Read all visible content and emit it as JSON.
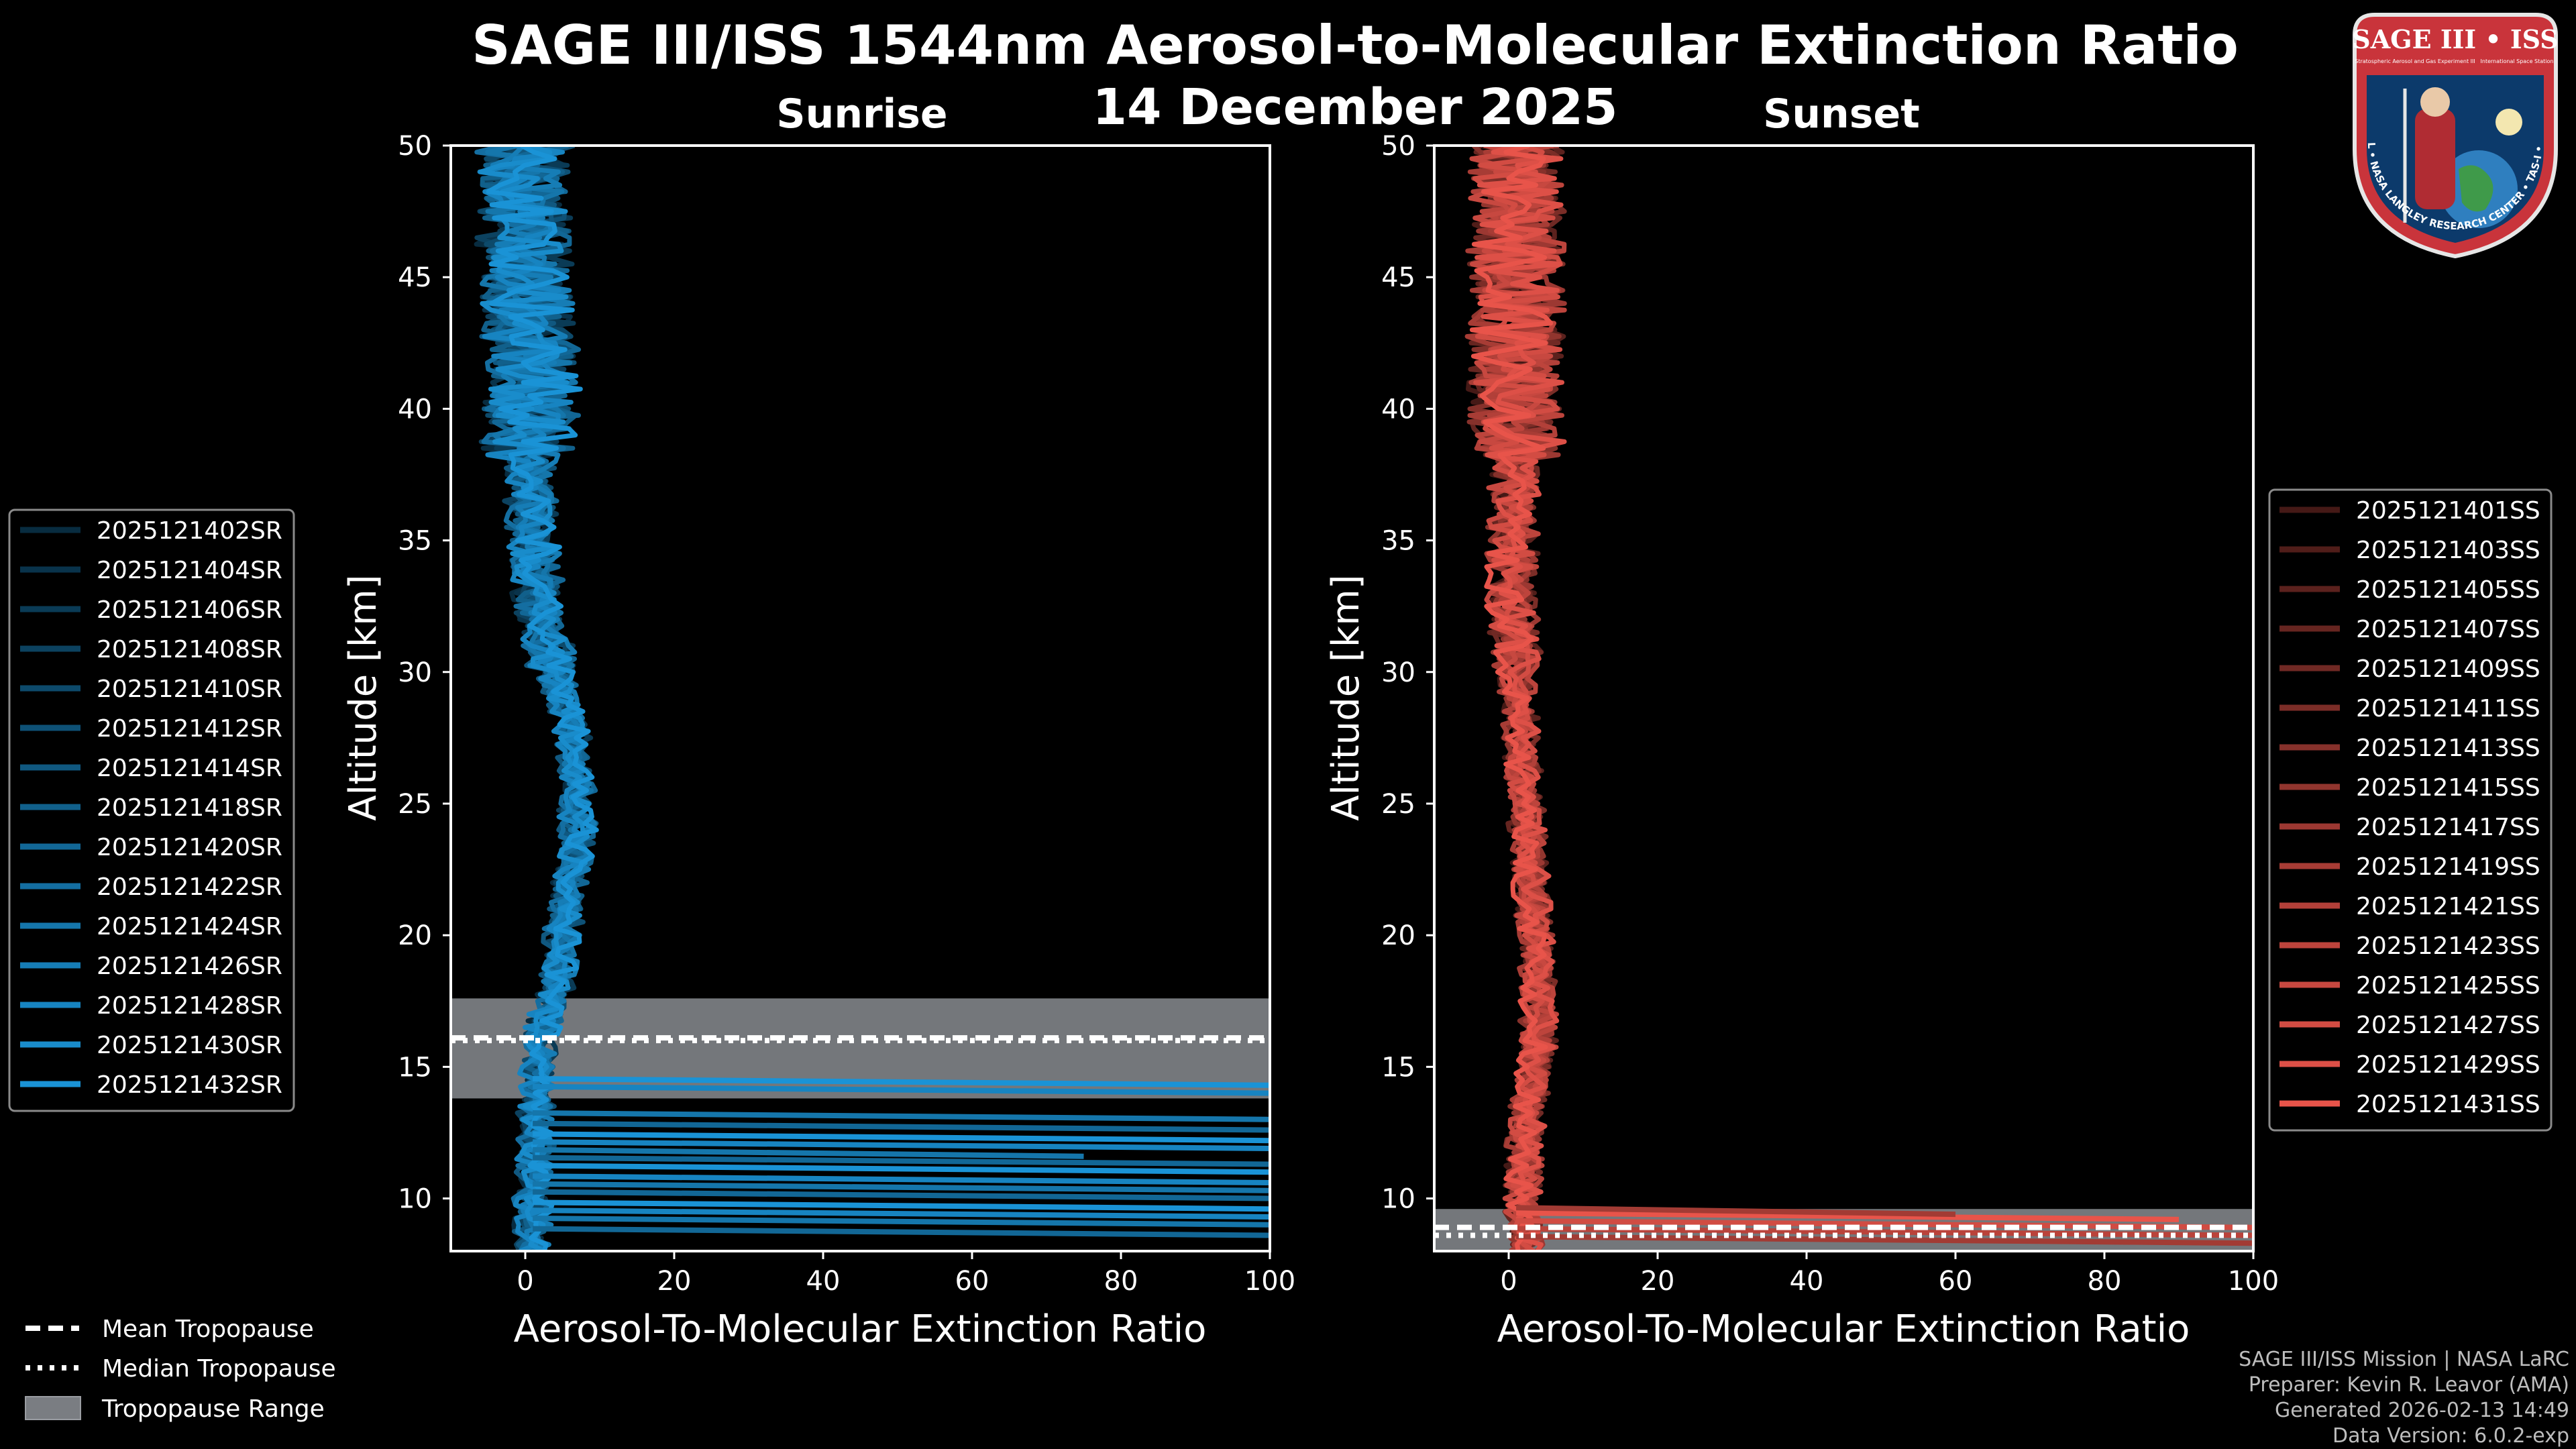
{
  "chart_data": {
    "type": "line",
    "title": "SAGE III/ISS 1544nm Aerosol-to-Molecular Extinction Ratio",
    "subtitle": "14 December 2025",
    "panels": [
      {
        "name": "Sunrise",
        "xlabel": "Aerosol-To-Molecular Extinction Ratio",
        "ylabel": "Altitude [km]",
        "xlim": [
          -10,
          100
        ],
        "ylim": [
          8,
          50
        ],
        "xticks": [
          "0",
          "20",
          "40",
          "60",
          "80",
          "100"
        ],
        "yticks": [
          "10",
          "15",
          "20",
          "25",
          "30",
          "35",
          "40",
          "45",
          "50"
        ],
        "color": "#1a93d6",
        "tropopause_range": [
          13.8,
          17.6
        ],
        "mean_tropopause": 16.1,
        "median_tropopause": 16.0,
        "legend": [
          "2025121402SR",
          "2025121404SR",
          "2025121406SR",
          "2025121408SR",
          "2025121410SR",
          "2025121412SR",
          "2025121414SR",
          "2025121418SR",
          "2025121420SR",
          "2025121422SR",
          "2025121424SR",
          "2025121426SR",
          "2025121428SR",
          "2025121430SR",
          "2025121432SR"
        ],
        "profile_shape": [
          [
            8,
            1
          ],
          [
            10,
            1
          ],
          [
            12,
            1.5
          ],
          [
            14,
            1.5
          ],
          [
            16,
            2
          ],
          [
            18,
            4
          ],
          [
            20,
            5
          ],
          [
            22,
            6
          ],
          [
            24,
            7
          ],
          [
            26,
            7
          ],
          [
            28,
            6
          ],
          [
            30,
            4
          ],
          [
            32,
            2
          ],
          [
            35,
            1
          ],
          [
            38,
            0.5
          ],
          [
            41,
            1
          ],
          [
            44,
            0
          ],
          [
            47,
            0
          ],
          [
            50,
            0
          ]
        ],
        "spikes": [
          [
            8.6,
            100
          ],
          [
            9.0,
            100
          ],
          [
            9.3,
            100
          ],
          [
            9.6,
            100
          ],
          [
            10.0,
            100
          ],
          [
            10.3,
            100
          ],
          [
            10.6,
            100
          ],
          [
            11.0,
            100
          ],
          [
            11.3,
            100
          ],
          [
            11.6,
            75
          ],
          [
            11.9,
            100
          ],
          [
            12.2,
            100
          ],
          [
            12.6,
            100
          ],
          [
            13.0,
            100
          ],
          [
            14.0,
            100
          ],
          [
            14.3,
            100
          ]
        ]
      },
      {
        "name": "Sunset",
        "xlabel": "Aerosol-To-Molecular Extinction Ratio",
        "ylabel": "Altitude [km]",
        "xlim": [
          -10,
          100
        ],
        "ylim": [
          8,
          50
        ],
        "xticks": [
          "0",
          "20",
          "40",
          "60",
          "80",
          "100"
        ],
        "yticks": [
          "10",
          "15",
          "20",
          "25",
          "30",
          "35",
          "40",
          "45",
          "50"
        ],
        "color": "#e8544a",
        "tropopause_range": [
          8.0,
          9.6
        ],
        "mean_tropopause": 8.9,
        "median_tropopause": 8.6,
        "legend": [
          "2025121401SS",
          "2025121403SS",
          "2025121405SS",
          "2025121407SS",
          "2025121409SS",
          "2025121411SS",
          "2025121413SS",
          "2025121415SS",
          "2025121417SS",
          "2025121419SS",
          "2025121421SS",
          "2025121423SS",
          "2025121425SS",
          "2025121427SS",
          "2025121429SS",
          "2025121431SS"
        ],
        "profile_shape": [
          [
            8,
            2
          ],
          [
            10,
            2
          ],
          [
            12,
            2
          ],
          [
            14,
            3
          ],
          [
            16,
            4
          ],
          [
            18,
            4
          ],
          [
            20,
            3.5
          ],
          [
            22,
            3
          ],
          [
            24,
            2.5
          ],
          [
            26,
            2
          ],
          [
            28,
            1.5
          ],
          [
            30,
            1
          ],
          [
            32,
            0.5
          ],
          [
            35,
            0.5
          ],
          [
            38,
            1
          ],
          [
            41,
            1
          ],
          [
            44,
            1
          ],
          [
            47,
            1
          ],
          [
            50,
            1
          ]
        ],
        "spikes": [
          [
            8.3,
            100
          ],
          [
            8.6,
            100
          ],
          [
            8.9,
            100
          ],
          [
            9.2,
            90
          ],
          [
            9.4,
            60
          ]
        ]
      }
    ],
    "legend_common": [
      "Mean Tropopause",
      "Median Tropopause",
      "Tropopause Range"
    ]
  },
  "credits": [
    "SAGE III/ISS Mission | NASA LaRC",
    "Preparer: Kevin R. Leavor (AMA)",
    "Generated 2026-02-13 14:49",
    "Data Version: 6.0.2-exp"
  ],
  "logo": {
    "title": "SAGE III • ISS",
    "subtitle_lines": [
      "Stratospheric Aerosol and Gas Experiment III",
      "International Space Station"
    ],
    "ring_text": "BALL • NASA LANGLEY RESEARCH CENTER • TAS-I • ESA"
  },
  "colors": {
    "sunrise": "#1a93d6",
    "sunset": "#e8544a",
    "tropo": "#7a7d82"
  }
}
